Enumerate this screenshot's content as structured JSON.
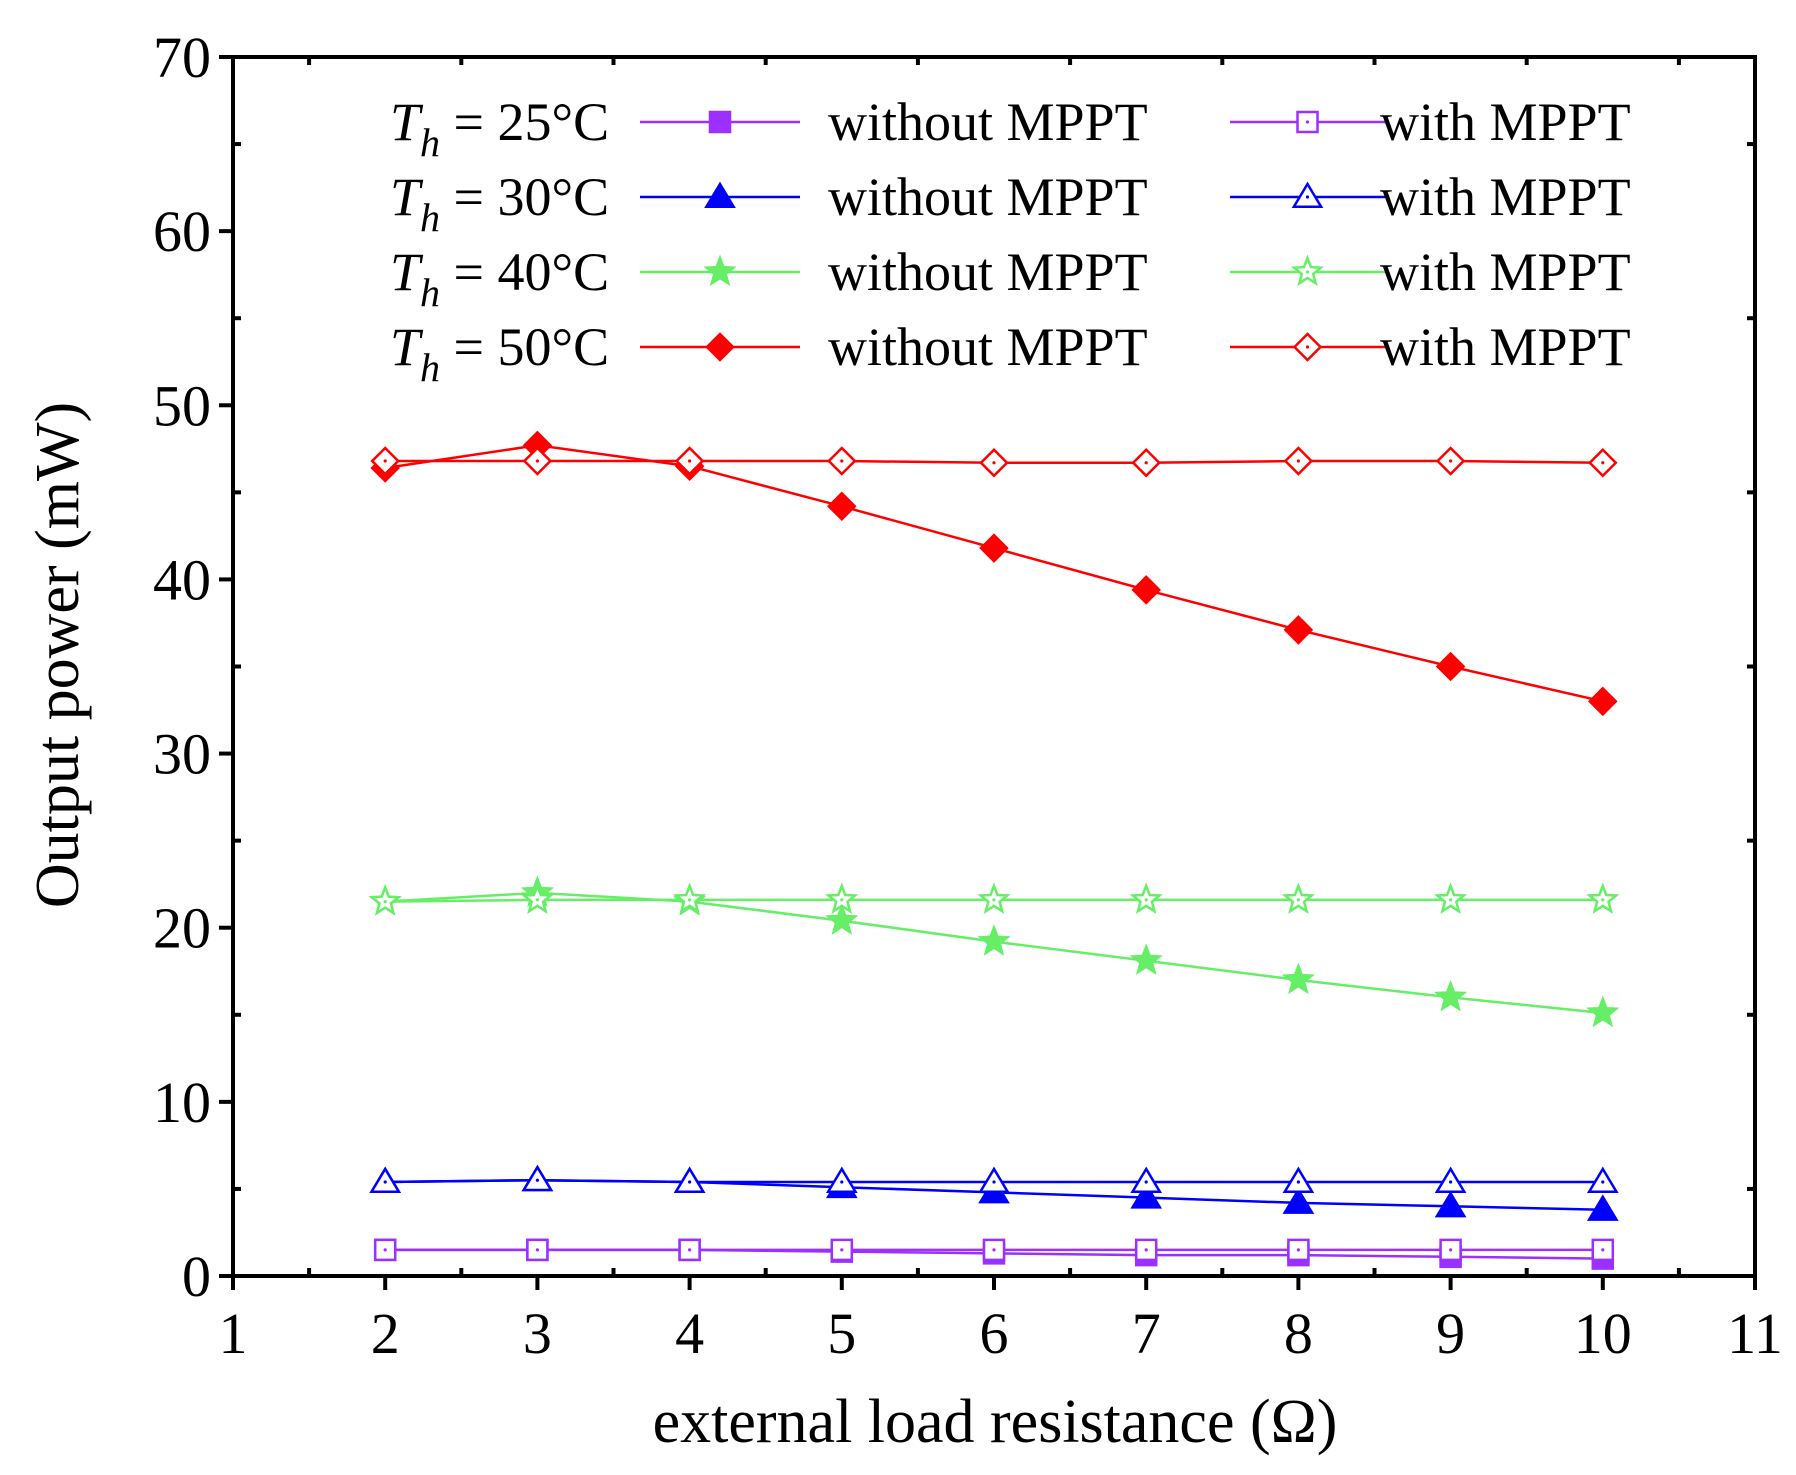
{
  "chart_data": {
    "type": "line",
    "title": "",
    "xlabel": "external load resistance (Ω)",
    "ylabel": "Output power (mW)",
    "xlim": [
      1,
      11
    ],
    "ylim": [
      0,
      70
    ],
    "xticks": [
      1,
      2,
      3,
      4,
      5,
      6,
      7,
      8,
      9,
      10,
      11
    ],
    "yticks": [
      0,
      10,
      20,
      30,
      40,
      50,
      60,
      70
    ],
    "grid": false,
    "legend_position": "top",
    "x": [
      2,
      3,
      4,
      5,
      6,
      7,
      8,
      9,
      10
    ],
    "legend_rows": [
      {
        "prefix": "T",
        "subscript": "h",
        "suffix": " = 25°C"
      },
      {
        "prefix": "T",
        "subscript": "h",
        "suffix": " = 30°C"
      },
      {
        "prefix": "T",
        "subscript": "h",
        "suffix": " = 40°C"
      },
      {
        "prefix": "T",
        "subscript": "h",
        "suffix": " = 50°C"
      }
    ],
    "series": [
      {
        "name": "without MPPT",
        "temperature": "25°C",
        "color": "#9b30ff",
        "marker": "square",
        "filled": true,
        "values": [
          1.5,
          1.5,
          1.5,
          1.4,
          1.3,
          1.2,
          1.2,
          1.1,
          1.0
        ]
      },
      {
        "name": "with MPPT",
        "temperature": "25°C",
        "color": "#9b30ff",
        "marker": "square",
        "filled": false,
        "values": [
          1.5,
          1.5,
          1.5,
          1.5,
          1.5,
          1.5,
          1.5,
          1.5,
          1.5
        ]
      },
      {
        "name": "without MPPT",
        "temperature": "30°C",
        "color": "#0000ff",
        "marker": "triangle",
        "filled": true,
        "values": [
          5.4,
          5.5,
          5.4,
          5.1,
          4.8,
          4.5,
          4.2,
          4.0,
          3.8
        ]
      },
      {
        "name": "with MPPT",
        "temperature": "30°C",
        "color": "#0000ff",
        "marker": "triangle",
        "filled": false,
        "values": [
          5.4,
          5.5,
          5.4,
          5.4,
          5.4,
          5.4,
          5.4,
          5.4,
          5.4
        ]
      },
      {
        "name": "without MPPT",
        "temperature": "40°C",
        "color": "#66ee66",
        "marker": "star",
        "filled": true,
        "values": [
          21.5,
          22.0,
          21.5,
          20.4,
          19.2,
          18.1,
          17.0,
          16.0,
          15.1
        ]
      },
      {
        "name": "with MPPT",
        "temperature": "40°C",
        "color": "#66ee66",
        "marker": "star",
        "filled": false,
        "values": [
          21.5,
          21.6,
          21.6,
          21.6,
          21.6,
          21.6,
          21.6,
          21.6,
          21.6
        ]
      },
      {
        "name": "without MPPT",
        "temperature": "50°C",
        "color": "#ff0000",
        "marker": "diamond",
        "filled": true,
        "values": [
          46.4,
          47.7,
          46.5,
          44.2,
          41.8,
          39.4,
          37.1,
          35.0,
          33.0
        ]
      },
      {
        "name": "with MPPT",
        "temperature": "50°C",
        "color": "#ff0000",
        "marker": "diamond",
        "filled": false,
        "values": [
          46.8,
          46.8,
          46.8,
          46.8,
          46.7,
          46.7,
          46.8,
          46.8,
          46.7
        ]
      }
    ]
  }
}
